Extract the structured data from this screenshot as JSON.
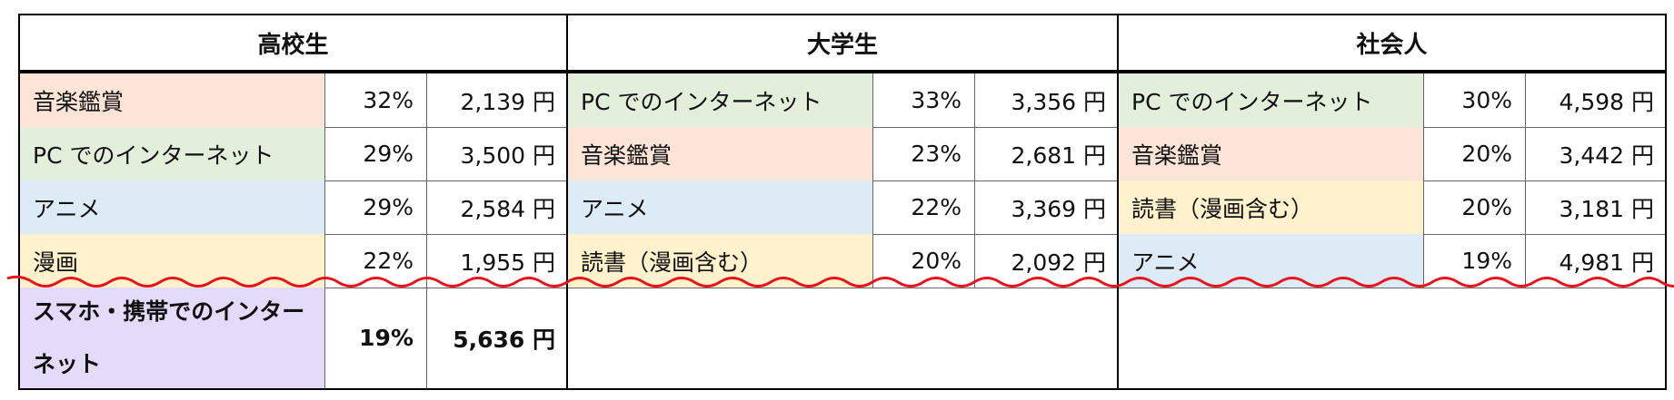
{
  "colors": {
    "音楽鑑賞": "#fce4d6",
    "PCでのインターネット": "#e2efda",
    "アニメ": "#ddebf7",
    "漫画": "#fff2cc",
    "読書（漫画含む）": "#fff2cc",
    "スマホ・携帯でのインターネット": "#e4dafa",
    "wave": "#e8141b"
  },
  "groups": [
    {
      "title": "高校生",
      "rows": [
        {
          "name": "音楽鑑賞",
          "pct": "32%",
          "amount": "2,139 円",
          "color_key": "音楽鑑賞"
        },
        {
          "name": "PC でのインターネット",
          "pct": "29%",
          "amount": "3,500 円",
          "color_key": "PCでのインターネット"
        },
        {
          "name": "アニメ",
          "pct": "29%",
          "amount": "2,584 円",
          "color_key": "アニメ"
        },
        {
          "name": "漫画",
          "pct": "22%",
          "amount": "1,955 円",
          "color_key": "漫画"
        }
      ],
      "extra": {
        "name": "スマホ・携帯でのインターネット",
        "pct": "19%",
        "amount": "5,636 円",
        "color_key": "スマホ・携帯でのインターネット"
      }
    },
    {
      "title": "大学生",
      "rows": [
        {
          "name": "PC でのインターネット",
          "pct": "33%",
          "amount": "3,356 円",
          "color_key": "PCでのインターネット"
        },
        {
          "name": "音楽鑑賞",
          "pct": "23%",
          "amount": "2,681 円",
          "color_key": "音楽鑑賞"
        },
        {
          "name": "アニメ",
          "pct": "22%",
          "amount": "3,369 円",
          "color_key": "アニメ"
        },
        {
          "name": "読書（漫画含む）",
          "pct": "20%",
          "amount": "2,092 円",
          "color_key": "読書（漫画含む）"
        }
      ]
    },
    {
      "title": "社会人",
      "rows": [
        {
          "name": "PC でのインターネット",
          "pct": "30%",
          "amount": "4,598 円",
          "color_key": "PCでのインターネット"
        },
        {
          "name": "音楽鑑賞",
          "pct": "20%",
          "amount": "3,442 円",
          "color_key": "音楽鑑賞"
        },
        {
          "name": "読書（漫画含む）",
          "pct": "20%",
          "amount": "3,181 円",
          "color_key": "読書（漫画含む）"
        },
        {
          "name": "アニメ",
          "pct": "19%",
          "amount": "4,981 円",
          "color_key": "アニメ"
        }
      ]
    }
  ]
}
